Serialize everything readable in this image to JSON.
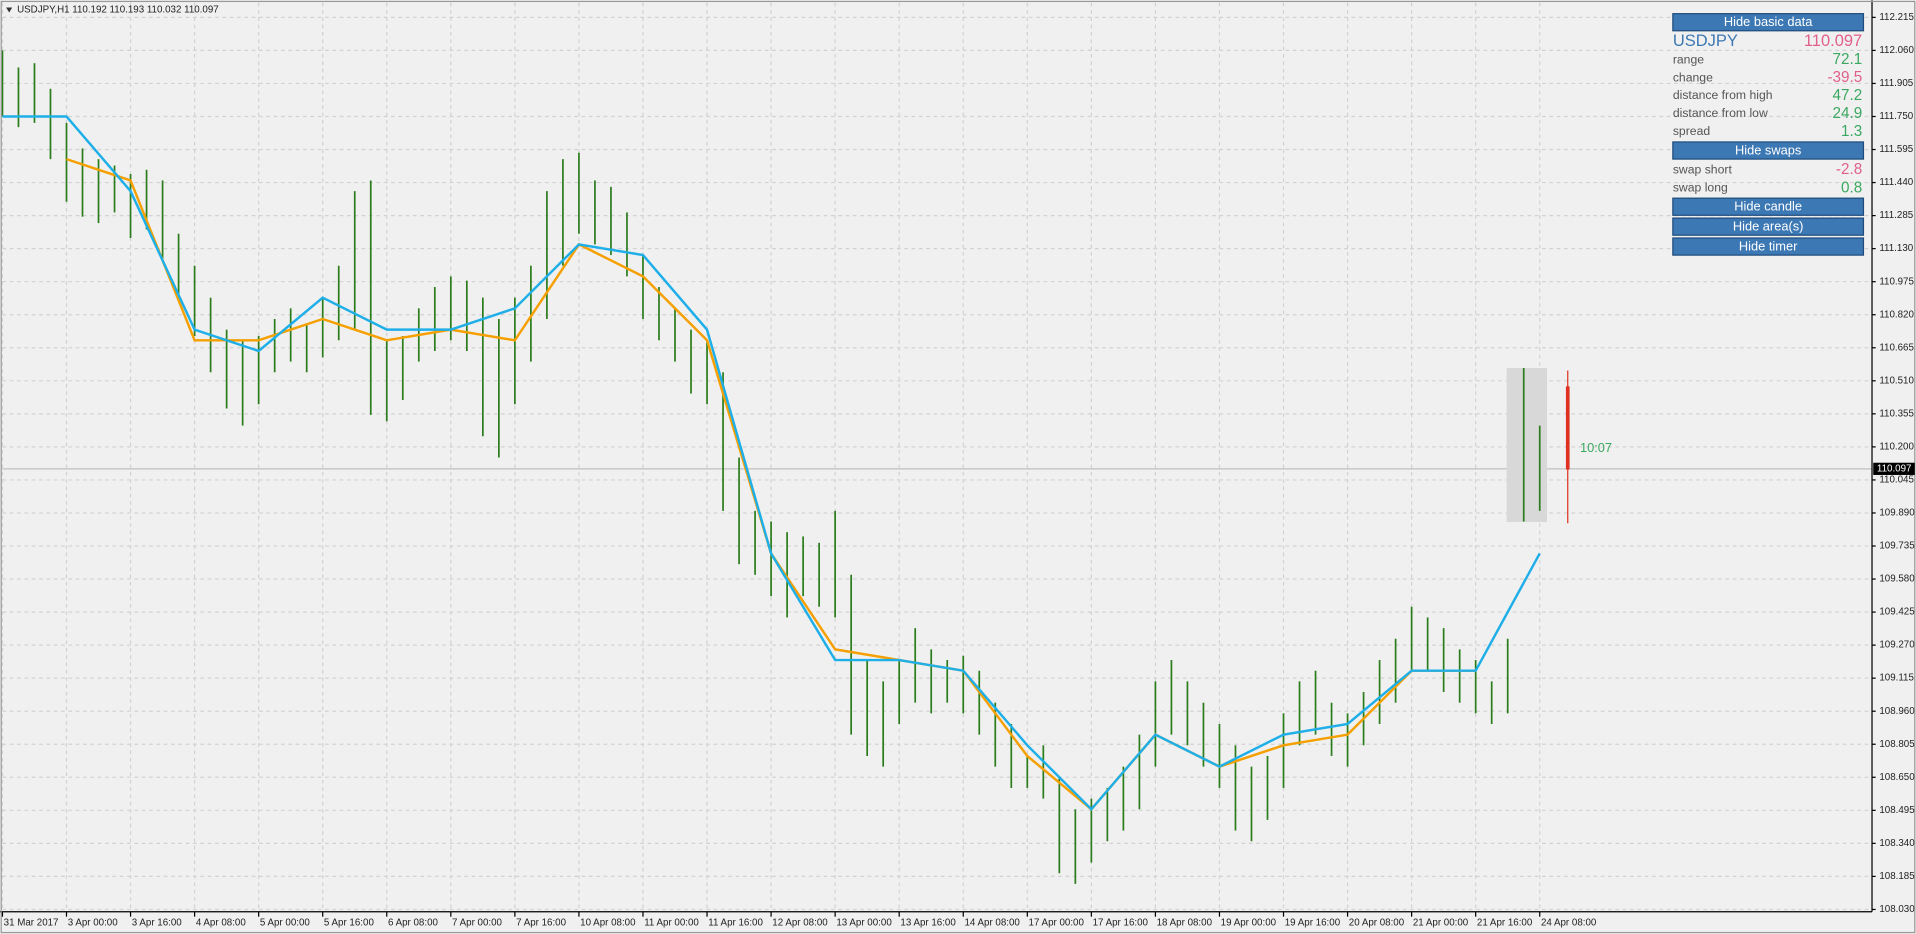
{
  "chart_data": {
    "type": "range_bar",
    "header": "USDJPY,H1  110.192 110.193 110.032 110.097",
    "xlim": [
      0,
      467
    ],
    "ylim": [
      108.019,
      112.284
    ],
    "grid": true,
    "yticks": [
      {
        "value": 108.03,
        "label": "108.030"
      },
      108.185,
      {
        "value": 108.34,
        "label": "108.340"
      },
      108.495,
      {
        "value": 108.65,
        "label": "108.650"
      },
      108.805,
      {
        "value": 108.96,
        "label": "108.960"
      },
      109.115,
      {
        "value": 109.27,
        "label": "109.270"
      },
      109.425,
      {
        "value": 109.58,
        "label": "109.580"
      },
      109.735,
      {
        "value": 109.89,
        "label": "109.890"
      },
      110.045,
      {
        "value": 110.2,
        "label": "110.200"
      },
      110.355,
      {
        "value": 110.51,
        "label": "110.510"
      },
      110.665,
      {
        "value": 110.82,
        "label": "110.820"
      },
      110.975,
      {
        "value": 111.13,
        "label": "111.130"
      },
      111.285,
      {
        "value": 111.44,
        "label": "111.440"
      },
      111.595,
      {
        "value": 111.75,
        "label": "111.750"
      },
      111.905,
      {
        "value": 112.06,
        "label": "112.060"
      },
      112.215
    ],
    "xticks": [
      {
        "value": 0,
        "label": "31 Mar 2017"
      },
      {
        "value": 16,
        "label": "3 Apr 00:00"
      },
      {
        "value": 32,
        "label": "3 Apr 16:00"
      },
      {
        "value": 48,
        "label": "4 Apr 08:00"
      },
      {
        "value": 64,
        "label": "5 Apr 00:00"
      },
      {
        "value": 80,
        "label": "5 Apr 16:00"
      },
      {
        "value": 96,
        "label": "6 Apr 08:00"
      },
      {
        "value": 112,
        "label": "7 Apr 00:00"
      },
      {
        "value": 128,
        "label": "7 Apr 16:00"
      },
      {
        "value": 144,
        "label": "10 Apr 08:00"
      },
      {
        "value": 160,
        "label": "11 Apr 00:00"
      },
      {
        "value": 176,
        "label": "11 Apr 16:00"
      },
      {
        "value": 192,
        "label": "12 Apr 08:00"
      },
      {
        "value": 208,
        "label": "13 Apr 00:00"
      },
      {
        "value": 224,
        "label": "13 Apr 16:00"
      },
      {
        "value": 240,
        "label": "14 Apr 08:00"
      },
      {
        "value": 256,
        "label": "17 Apr 00:00"
      },
      {
        "value": 272,
        "label": "17 Apr 16:00"
      },
      {
        "value": 288,
        "label": "18 Apr 08:00"
      },
      {
        "value": 304,
        "label": "19 Apr 00:00"
      },
      {
        "value": 320,
        "label": "19 Apr 16:00"
      },
      {
        "value": 336,
        "label": "20 Apr 08:00"
      },
      {
        "value": 352,
        "label": "21 Apr 00:00"
      },
      {
        "value": 368,
        "label": "21 Apr 16:00"
      },
      {
        "value": 384,
        "label": "24 Apr 08:00"
      }
    ],
    "bars": {
      "color": "#2b7d1c",
      "x": [
        0,
        4,
        8,
        12,
        16,
        20,
        24,
        28,
        32,
        36,
        40,
        44,
        48,
        52,
        56,
        60,
        64,
        68,
        72,
        76,
        80,
        84,
        88,
        92,
        96,
        100,
        104,
        108,
        112,
        116,
        120,
        124,
        128,
        132,
        136,
        140,
        144,
        148,
        152,
        156,
        160,
        164,
        168,
        172,
        176,
        180,
        184,
        188,
        192,
        196,
        200,
        204,
        208,
        212,
        216,
        220,
        224,
        228,
        232,
        236,
        240,
        244,
        248,
        252,
        256,
        260,
        264,
        268,
        272,
        276,
        280,
        284,
        288,
        292,
        296,
        300,
        304,
        308,
        312,
        316,
        320,
        324,
        328,
        332,
        336,
        340,
        344,
        348,
        352,
        356,
        360,
        364,
        368,
        372,
        376,
        380,
        384
      ],
      "high": [
        112.06,
        111.98,
        112.0,
        111.88,
        111.72,
        111.6,
        111.55,
        111.52,
        111.48,
        111.5,
        111.45,
        111.2,
        111.05,
        110.9,
        110.75,
        110.7,
        110.72,
        110.8,
        110.85,
        110.78,
        110.9,
        111.05,
        111.4,
        111.45,
        110.7,
        110.72,
        110.85,
        110.95,
        111.0,
        110.98,
        110.9,
        110.8,
        110.9,
        111.05,
        111.4,
        111.55,
        111.58,
        111.45,
        111.42,
        111.3,
        111.1,
        110.95,
        110.85,
        110.75,
        110.7,
        110.55,
        110.15,
        109.9,
        109.85,
        109.8,
        109.78,
        109.75,
        109.9,
        109.6,
        109.2,
        109.1,
        109.2,
        109.35,
        109.25,
        109.2,
        109.22,
        109.15,
        109.0,
        108.9,
        108.75,
        108.8,
        108.65,
        108.5,
        108.55,
        108.6,
        108.7,
        108.85,
        109.1,
        109.2,
        109.1,
        109.0,
        108.9,
        108.8,
        108.7,
        108.75,
        108.95,
        109.1,
        109.15,
        109.0,
        108.95,
        109.05,
        109.2,
        109.3,
        109.45,
        109.4,
        109.35,
        109.25,
        109.2,
        109.1,
        109.3,
        110.57,
        110.3
      ],
      "low": [
        111.75,
        111.7,
        111.72,
        111.55,
        111.35,
        111.28,
        111.25,
        111.3,
        111.18,
        111.22,
        111.08,
        110.9,
        110.72,
        110.55,
        110.38,
        110.3,
        110.4,
        110.55,
        110.6,
        110.55,
        110.62,
        110.7,
        110.75,
        110.35,
        110.32,
        110.42,
        110.6,
        110.65,
        110.7,
        110.65,
        110.25,
        110.15,
        110.4,
        110.6,
        110.8,
        111.05,
        111.2,
        111.15,
        111.1,
        111.0,
        110.8,
        110.7,
        110.6,
        110.45,
        110.4,
        109.9,
        109.65,
        109.6,
        109.5,
        109.4,
        109.5,
        109.45,
        109.4,
        108.85,
        108.75,
        108.7,
        108.9,
        109.0,
        108.95,
        109.0,
        108.95,
        108.85,
        108.7,
        108.6,
        108.6,
        108.55,
        108.2,
        108.15,
        108.25,
        108.35,
        108.4,
        108.5,
        108.7,
        108.85,
        108.8,
        108.7,
        108.6,
        108.4,
        108.35,
        108.45,
        108.6,
        108.8,
        108.85,
        108.75,
        108.7,
        108.8,
        108.9,
        109.0,
        109.15,
        109.15,
        109.05,
        109.0,
        108.95,
        108.9,
        108.95,
        109.85,
        109.9
      ]
    },
    "line_x": [
      0,
      16,
      32,
      48,
      64,
      80,
      96,
      112,
      128,
      144,
      160,
      176,
      192,
      208,
      224,
      240,
      256,
      272,
      288,
      304,
      320,
      336,
      352,
      368,
      384
    ],
    "lines": [
      {
        "color": "#f5a000",
        "values": [
          null,
          111.55,
          111.45,
          110.7,
          110.7,
          110.8,
          110.7,
          110.75,
          110.7,
          111.15,
          111.0,
          110.7,
          109.7,
          109.25,
          109.2,
          109.15,
          108.75,
          108.5,
          108.85,
          108.7,
          108.8,
          108.85,
          109.15,
          109.15,
          null
        ]
      },
      {
        "color": "#1eaee8",
        "values": [
          111.75,
          111.75,
          111.4,
          110.75,
          110.65,
          110.9,
          110.75,
          110.75,
          110.85,
          111.15,
          111.1,
          110.75,
          109.7,
          109.2,
          109.2,
          109.15,
          108.8,
          108.5,
          108.85,
          108.7,
          108.85,
          108.9,
          109.15,
          109.15,
          109.7
        ]
      }
    ],
    "current_price": 110.097,
    "timer": "10:07"
  },
  "panel": {
    "hide_basic": "Hide basic data",
    "symbol": "USDJPY",
    "price": 110.097,
    "price_color": "#e0608a",
    "rows": [
      {
        "label": "range",
        "value": 72.1,
        "color": "#3aa860"
      },
      {
        "label": "change",
        "value": -39.5,
        "color": "#e0608a"
      },
      {
        "label": "distance from high",
        "value": 47.2,
        "color": "#3aa860"
      },
      {
        "label": "distance from low",
        "value": 24.9,
        "color": "#3aa860"
      },
      {
        "label": "spread",
        "value": 1.3,
        "color": "#3aa860"
      }
    ],
    "hide_swaps": "Hide swaps",
    "swaps": [
      {
        "label": "swap short",
        "value": -2.8,
        "color": "#e0608a"
      },
      {
        "label": "swap long",
        "value": 0.8,
        "color": "#3aa860"
      }
    ],
    "buttons": [
      "Hide candle",
      "Hide area(s)",
      "Hide timer"
    ]
  }
}
